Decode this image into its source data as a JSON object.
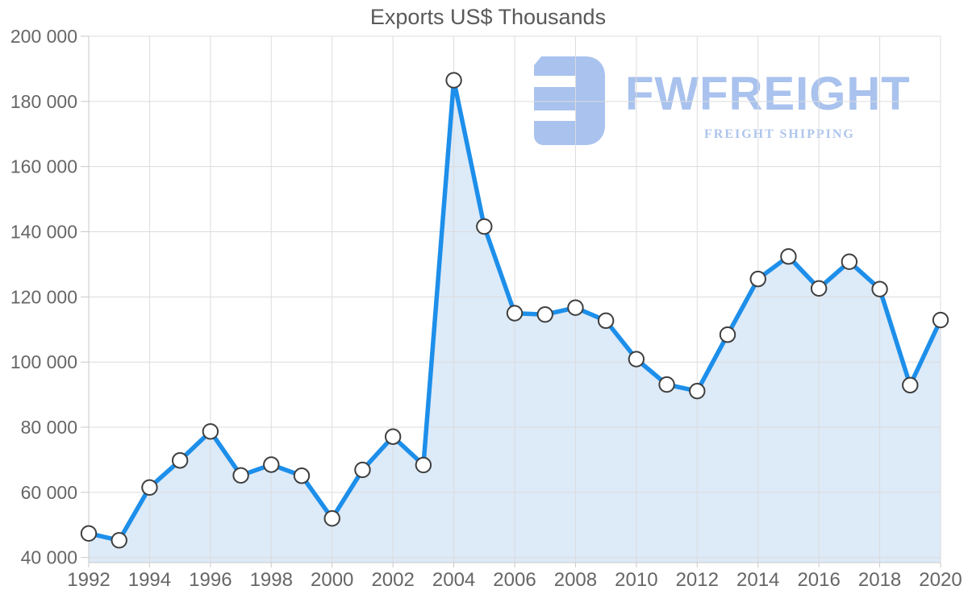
{
  "header": {
    "title": "Exports US$ Thousands"
  },
  "logo": {
    "name": "FWFREIGHT",
    "tagline": "FREIGHT SHIPPING",
    "color": "#a9c2ee"
  },
  "colors": {
    "line": "#1d8fea",
    "area": "#ddeaf8",
    "marker_fill": "#ffffff",
    "marker_border": "#3f3f3f",
    "grid": "#dcdcdc",
    "axis": "#c9c9c9",
    "tick_label": "#666666",
    "title": "#595959"
  },
  "chart_data": {
    "type": "area",
    "title": "Exports US$ Thousands",
    "xlabel": "",
    "ylabel": "",
    "x": [
      1992,
      1993,
      1994,
      1995,
      1996,
      1997,
      1998,
      1999,
      2000,
      2001,
      2002,
      2003,
      2004,
      2005,
      2006,
      2007,
      2008,
      2009,
      2010,
      2011,
      2012,
      2013,
      2014,
      2015,
      2016,
      2017,
      2018,
      2019,
      2020
    ],
    "values": [
      47400,
      45300,
      61500,
      69800,
      78700,
      65200,
      68500,
      65100,
      52000,
      66900,
      77100,
      68400,
      186500,
      141600,
      115000,
      114600,
      116700,
      112700,
      100900,
      93100,
      91100,
      108400,
      125500,
      132400,
      122600,
      130800,
      122400,
      92900,
      112900
    ],
    "ylim": [
      38440,
      200000
    ],
    "yticks": [
      40000,
      60000,
      80000,
      100000,
      120000,
      140000,
      160000,
      180000,
      200000
    ],
    "ytick_labels": [
      "40 000",
      "60 000",
      "80 000",
      "100 000",
      "120 000",
      "140 000",
      "160 000",
      "180 000",
      "200 000"
    ],
    "xticks": [
      1992,
      1994,
      1996,
      1998,
      2000,
      2002,
      2004,
      2006,
      2008,
      2010,
      2012,
      2014,
      2016,
      2018,
      2020
    ],
    "grid": true,
    "legend": false,
    "marker": "circle-white"
  }
}
